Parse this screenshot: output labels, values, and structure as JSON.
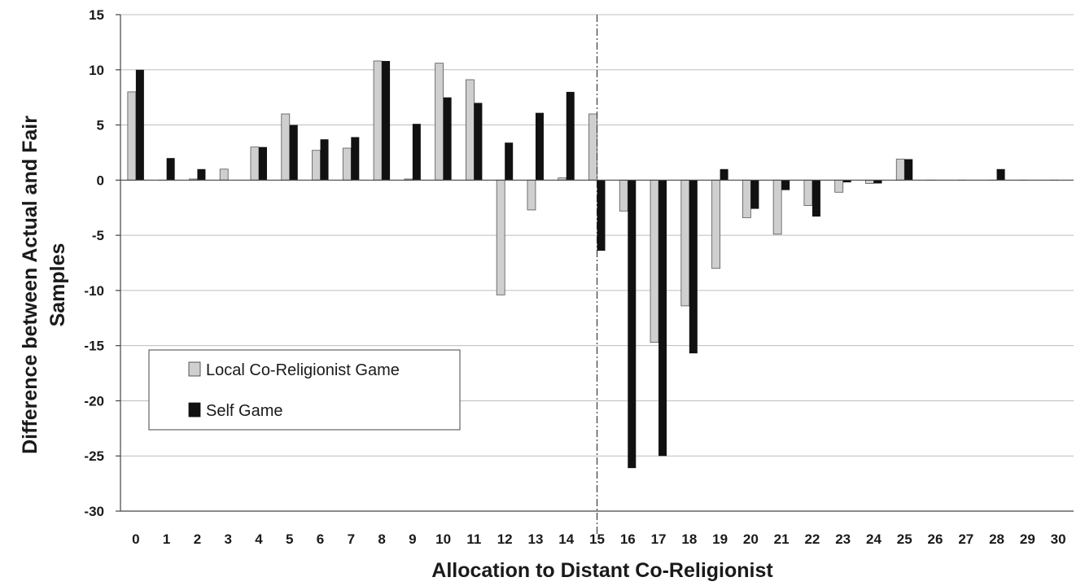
{
  "chart_data": {
    "type": "bar",
    "title": "",
    "xlabel": "Allocation to Distant Co-Religionist",
    "ylabel_lines": [
      "Difference between Actual and Fair",
      "Samples"
    ],
    "categories": [
      "0",
      "1",
      "2",
      "3",
      "4",
      "5",
      "6",
      "7",
      "8",
      "9",
      "10",
      "11",
      "12",
      "13",
      "14",
      "15",
      "16",
      "17",
      "18",
      "19",
      "20",
      "21",
      "22",
      "23",
      "24",
      "25",
      "26",
      "27",
      "28",
      "29",
      "30"
    ],
    "ylim": [
      -30,
      15
    ],
    "yticks": [
      15,
      10,
      5,
      0,
      -5,
      -10,
      -15,
      -20,
      -25,
      -30
    ],
    "grid": true,
    "reference_line_at": "15",
    "legend_placement": "lower-left",
    "series": [
      {
        "name": "Local Co-Religionist Game",
        "color": "#cfcfcf",
        "values": [
          8,
          0,
          0.1,
          1,
          3,
          6,
          2.7,
          2.9,
          10.8,
          0.1,
          10.6,
          9.1,
          -10.4,
          -2.7,
          0.2,
          6,
          -2.8,
          -14.7,
          -11.4,
          -8,
          -3.4,
          -4.9,
          -2.3,
          -1.1,
          -0.3,
          1.9,
          0,
          0,
          0,
          0,
          0
        ]
      },
      {
        "name": "Self Game",
        "color": "#111111",
        "values": [
          10,
          2,
          1,
          0,
          3,
          5,
          3.7,
          3.9,
          10.8,
          5.1,
          7.5,
          7,
          3.4,
          6.1,
          8,
          -6.4,
          -26.1,
          -25,
          -15.7,
          1,
          -2.6,
          -0.9,
          -3.3,
          -0.2,
          -0.3,
          1.9,
          0,
          0,
          1,
          0,
          0
        ]
      }
    ]
  }
}
